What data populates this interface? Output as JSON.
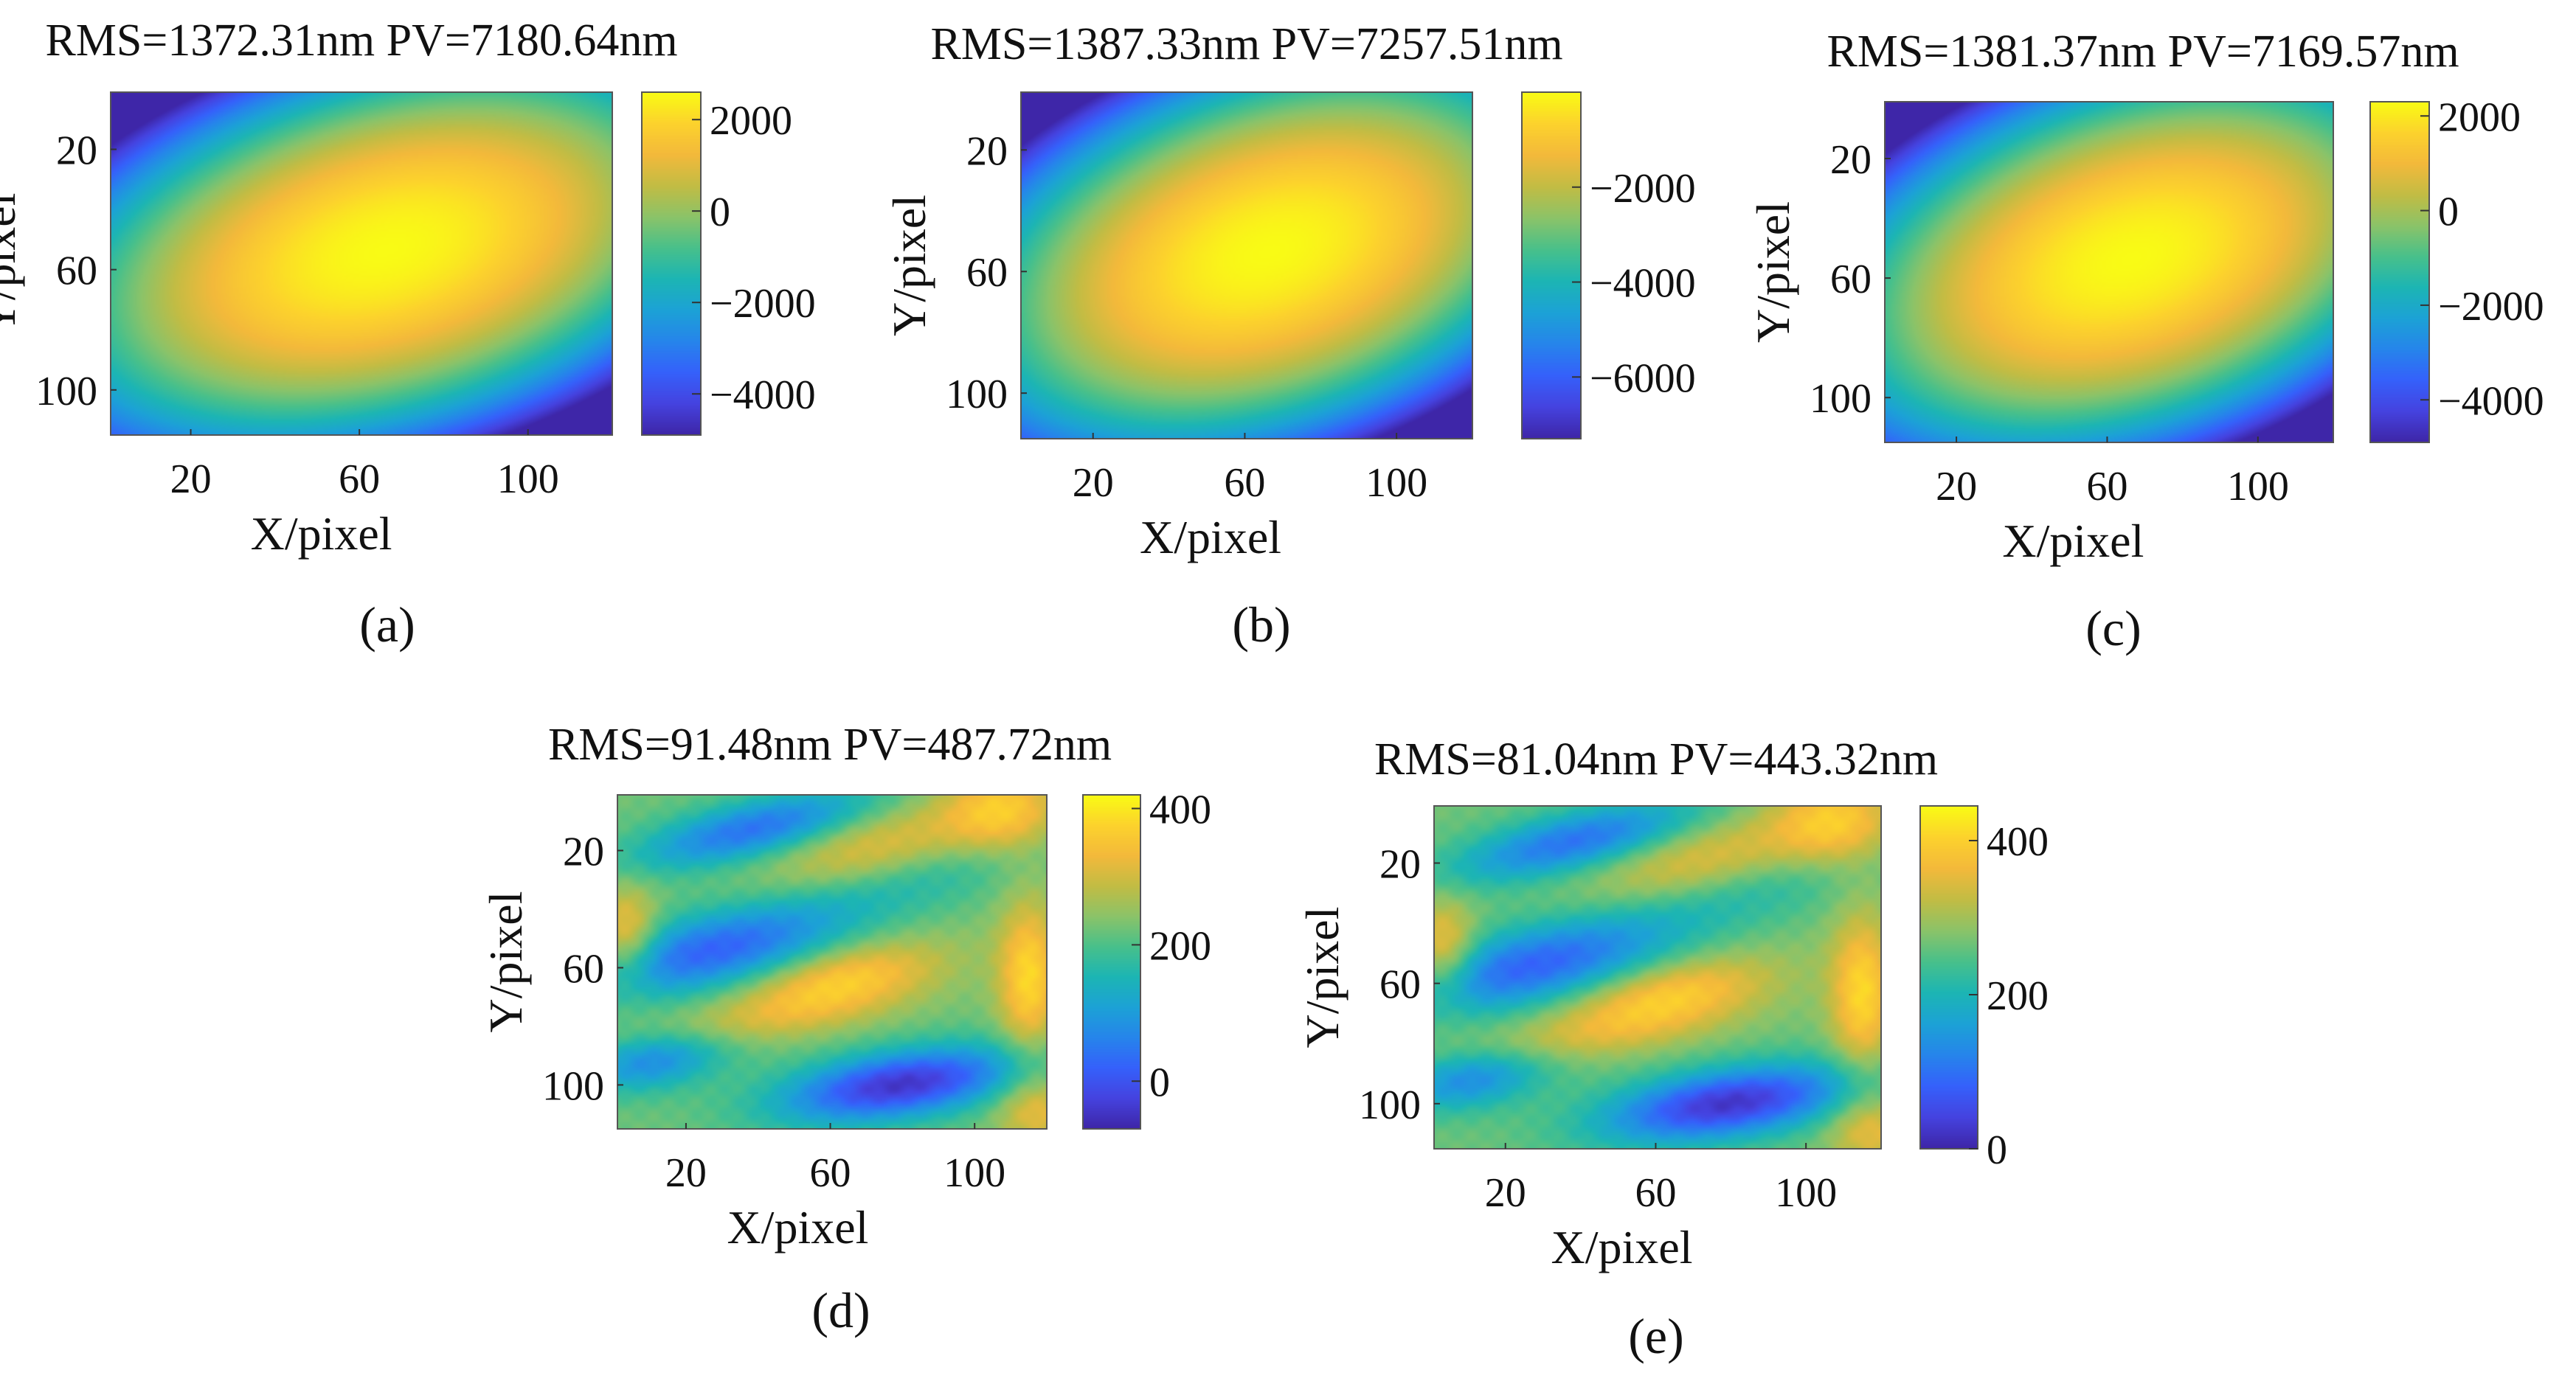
{
  "colormap_name": "parula",
  "colormap_stops": [
    "#3e26a8",
    "#4543e0",
    "#3561fb",
    "#2685eb",
    "#1ca2d6",
    "#1cb5b4",
    "#48c08b",
    "#8bc369",
    "#c2bc44",
    "#f3b93b",
    "#fcd22d",
    "#f9fb15"
  ],
  "chart_data": [
    {
      "panel": "a",
      "caption": "(a)",
      "type": "heatmap",
      "pattern": "ellipse",
      "title": "RMS=1372.31nm PV=7180.64nm",
      "xlabel": "X/pixel",
      "ylabel": "Y/pixel",
      "xlim": [
        1,
        120
      ],
      "ylim": [
        1,
        115
      ],
      "xticks": [
        20,
        60,
        100
      ],
      "yticks": [
        20,
        60,
        100
      ],
      "clim": [
        -4900,
        2600
      ],
      "cticks": [
        2000,
        0,
        -2000,
        -4000
      ],
      "cticklabels": [
        "2000",
        "0",
        "−2000",
        "−4000"
      ]
    },
    {
      "panel": "b",
      "caption": "(b)",
      "type": "heatmap",
      "pattern": "ellipse",
      "title": "RMS=1387.33nm PV=7257.51nm",
      "xlabel": "X/pixel",
      "ylabel": "Y/pixel",
      "xlim": [
        1,
        120
      ],
      "ylim": [
        1,
        115
      ],
      "xticks": [
        20,
        60,
        100
      ],
      "yticks": [
        20,
        60,
        100
      ],
      "clim": [
        -7300,
        0
      ],
      "cticks": [
        -2000,
        -4000,
        -6000
      ],
      "cticklabels": [
        "−2000",
        "−4000",
        "−6000"
      ]
    },
    {
      "panel": "c",
      "caption": "(c)",
      "type": "heatmap",
      "pattern": "ellipse",
      "title": "RMS=1381.37nm PV=7169.57nm",
      "xlabel": "X/pixel",
      "ylabel": "Y/pixel",
      "xlim": [
        1,
        120
      ],
      "ylim": [
        1,
        115
      ],
      "xticks": [
        20,
        60,
        100
      ],
      "yticks": [
        20,
        60,
        100
      ],
      "clim": [
        -4900,
        2300
      ],
      "cticks": [
        2000,
        0,
        -2000,
        -4000
      ],
      "cticklabels": [
        "2000",
        "0",
        "−2000",
        "−4000"
      ]
    },
    {
      "panel": "d",
      "caption": "(d)",
      "type": "heatmap",
      "pattern": "residual",
      "title": "RMS=91.48nm PV=487.72nm",
      "xlabel": "X/pixel",
      "ylabel": "Y/pixel",
      "xlim": [
        1,
        120
      ],
      "ylim": [
        1,
        115
      ],
      "xticks": [
        20,
        60,
        100
      ],
      "yticks": [
        20,
        60,
        100
      ],
      "clim": [
        -70,
        420
      ],
      "cticks": [
        400,
        200,
        0
      ],
      "cticklabels": [
        "400",
        "200",
        "0"
      ]
    },
    {
      "panel": "e",
      "caption": "(e)",
      "type": "heatmap",
      "pattern": "residual",
      "title": "RMS=81.04nm PV=443.32nm",
      "xlabel": "X/pixel",
      "ylabel": "Y/pixel",
      "xlim": [
        1,
        120
      ],
      "ylim": [
        1,
        115
      ],
      "xticks": [
        20,
        60,
        100
      ],
      "yticks": [
        20,
        60,
        100
      ],
      "clim": [
        0,
        445
      ],
      "cticks": [
        400,
        200,
        0
      ],
      "cticklabels": [
        "400",
        "200",
        "0"
      ]
    }
  ]
}
